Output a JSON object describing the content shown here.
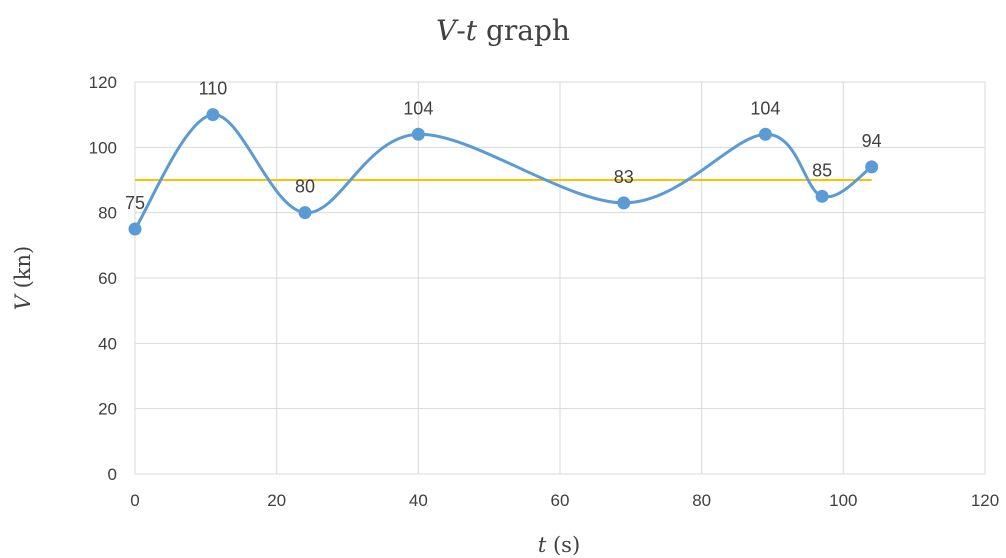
{
  "chart_data": {
    "type": "line",
    "title": {
      "italic": "V",
      "sep": "-",
      "italic2": "t",
      "rest": " graph"
    },
    "xlabel": {
      "italic": "t",
      "rest": " (s)"
    },
    "ylabel": {
      "italic": "V",
      "rest": " (kn)"
    },
    "xlim": [
      0,
      120
    ],
    "ylim": [
      0,
      120
    ],
    "xticks": [
      0,
      20,
      40,
      60,
      80,
      100,
      120
    ],
    "yticks": [
      0,
      20,
      40,
      60,
      80,
      100,
      120
    ],
    "grid": true,
    "series": [
      {
        "smooth": true,
        "color": "#5b9bd5",
        "x": [
          0,
          11,
          24,
          40,
          69,
          89,
          97,
          104
        ],
        "y": [
          75,
          110,
          80,
          104,
          83,
          104,
          85,
          94
        ],
        "labels": [
          "75",
          "110",
          "80",
          "104",
          "83",
          "104",
          "85",
          "94"
        ]
      }
    ],
    "reference_line": {
      "y": 90,
      "x": [
        0,
        104
      ],
      "color": "#ffc000"
    }
  }
}
